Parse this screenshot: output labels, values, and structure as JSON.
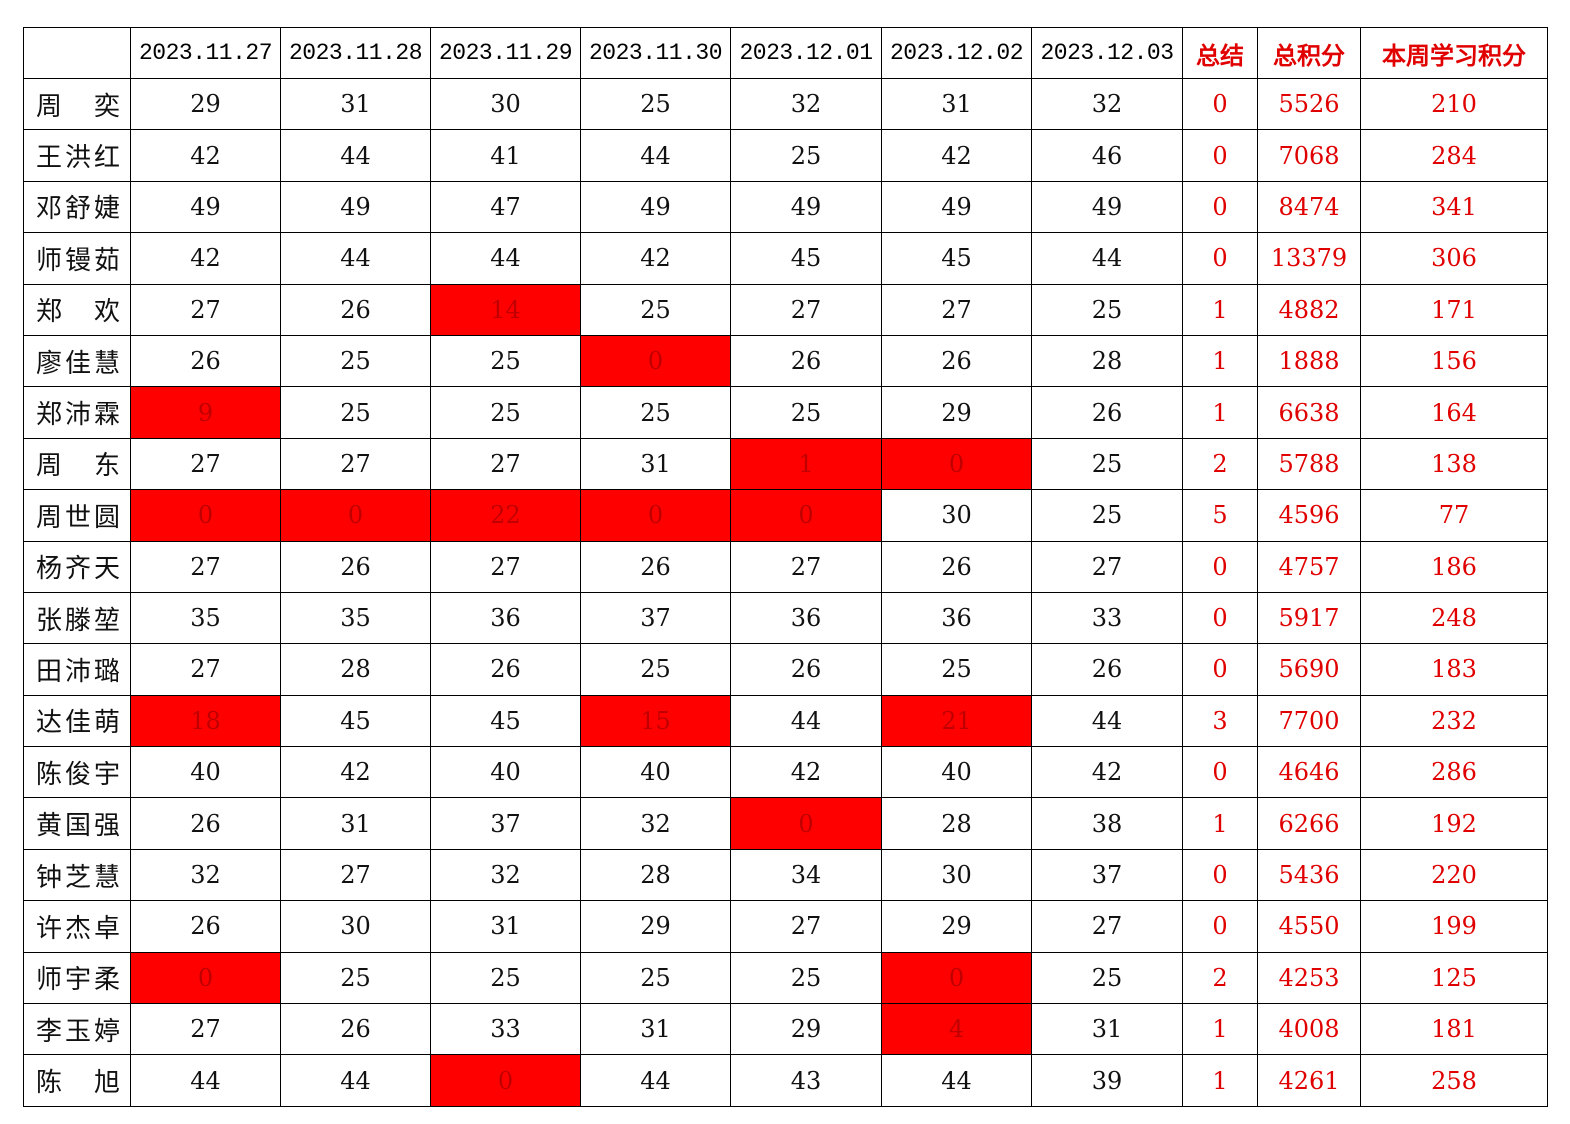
{
  "header": {
    "corner": "",
    "dates": [
      "2023.11.27",
      "2023.11.28",
      "2023.11.29",
      "2023.11.30",
      "2023.12.01",
      "2023.12.02",
      "2023.12.03"
    ],
    "summary": "总结",
    "total_points": "总积分",
    "weekly_points": "本周学习积分"
  },
  "colors": {
    "flag_fill": "#ff0000",
    "accent_text": "#e00000"
  },
  "rows": [
    {
      "name": "周 奕",
      "scores": [
        29,
        31,
        30,
        25,
        32,
        31,
        32
      ],
      "flagged": [],
      "summary": 0,
      "total": 5526,
      "weekly": 210
    },
    {
      "name": "王洪红",
      "scores": [
        42,
        44,
        41,
        44,
        25,
        42,
        46
      ],
      "flagged": [],
      "summary": 0,
      "total": 7068,
      "weekly": 284
    },
    {
      "name": "邓舒婕",
      "scores": [
        49,
        49,
        47,
        49,
        49,
        49,
        49
      ],
      "flagged": [],
      "summary": 0,
      "total": 8474,
      "weekly": 341
    },
    {
      "name": "师镘茹",
      "scores": [
        42,
        44,
        44,
        42,
        45,
        45,
        44
      ],
      "flagged": [],
      "summary": 0,
      "total": 13379,
      "weekly": 306
    },
    {
      "name": "郑 欢",
      "scores": [
        27,
        26,
        14,
        25,
        27,
        27,
        25
      ],
      "flagged": [
        2
      ],
      "summary": 1,
      "total": 4882,
      "weekly": 171
    },
    {
      "name": "廖佳慧",
      "scores": [
        26,
        25,
        25,
        0,
        26,
        26,
        28
      ],
      "flagged": [
        3
      ],
      "summary": 1,
      "total": 1888,
      "weekly": 156
    },
    {
      "name": "郑沛霖",
      "scores": [
        9,
        25,
        25,
        25,
        25,
        29,
        26
      ],
      "flagged": [
        0
      ],
      "summary": 1,
      "total": 6638,
      "weekly": 164
    },
    {
      "name": "周 东",
      "scores": [
        27,
        27,
        27,
        31,
        1,
        0,
        25
      ],
      "flagged": [
        4,
        5
      ],
      "summary": 2,
      "total": 5788,
      "weekly": 138
    },
    {
      "name": "周世圆",
      "scores": [
        0,
        0,
        22,
        0,
        0,
        30,
        25
      ],
      "flagged": [
        0,
        1,
        2,
        3,
        4
      ],
      "summary": 5,
      "total": 4596,
      "weekly": 77
    },
    {
      "name": "杨齐天",
      "scores": [
        27,
        26,
        27,
        26,
        27,
        26,
        27
      ],
      "flagged": [],
      "summary": 0,
      "total": 4757,
      "weekly": 186
    },
    {
      "name": "张滕堃",
      "scores": [
        35,
        35,
        36,
        37,
        36,
        36,
        33
      ],
      "flagged": [],
      "summary": 0,
      "total": 5917,
      "weekly": 248
    },
    {
      "name": "田沛璐",
      "scores": [
        27,
        28,
        26,
        25,
        26,
        25,
        26
      ],
      "flagged": [],
      "summary": 0,
      "total": 5690,
      "weekly": 183
    },
    {
      "name": "达佳萌",
      "scores": [
        18,
        45,
        45,
        15,
        44,
        21,
        44
      ],
      "flagged": [
        0,
        3,
        5
      ],
      "summary": 3,
      "total": 7700,
      "weekly": 232
    },
    {
      "name": "陈俊宇",
      "scores": [
        40,
        42,
        40,
        40,
        42,
        40,
        42
      ],
      "flagged": [],
      "summary": 0,
      "total": 4646,
      "weekly": 286
    },
    {
      "name": "黄国强",
      "scores": [
        26,
        31,
        37,
        32,
        0,
        28,
        38
      ],
      "flagged": [
        4
      ],
      "summary": 1,
      "total": 6266,
      "weekly": 192
    },
    {
      "name": "钟芝慧",
      "scores": [
        32,
        27,
        32,
        28,
        34,
        30,
        37
      ],
      "flagged": [],
      "summary": 0,
      "total": 5436,
      "weekly": 220
    },
    {
      "name": "许杰卓",
      "scores": [
        26,
        30,
        31,
        29,
        27,
        29,
        27
      ],
      "flagged": [],
      "summary": 0,
      "total": 4550,
      "weekly": 199
    },
    {
      "name": "师宇柔",
      "scores": [
        0,
        25,
        25,
        25,
        25,
        0,
        25
      ],
      "flagged": [
        0,
        5
      ],
      "summary": 2,
      "total": 4253,
      "weekly": 125
    },
    {
      "name": "李玉婷",
      "scores": [
        27,
        26,
        33,
        31,
        29,
        4,
        31
      ],
      "flagged": [
        5
      ],
      "summary": 1,
      "total": 4008,
      "weekly": 181
    },
    {
      "name": "陈 旭",
      "scores": [
        44,
        44,
        0,
        44,
        43,
        44,
        39
      ],
      "flagged": [
        2
      ],
      "summary": 1,
      "total": 4261,
      "weekly": 258
    }
  ]
}
